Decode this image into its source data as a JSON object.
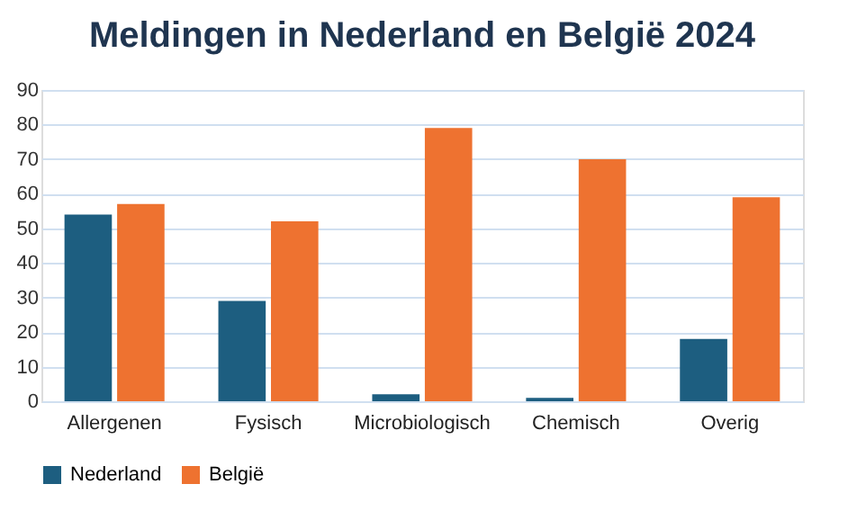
{
  "chart_data": {
    "type": "bar",
    "title": "Meldingen in Nederland en België 2024",
    "categories": [
      "Allergenen",
      "Fysisch",
      "Microbiologisch",
      "Chemisch",
      "Overig"
    ],
    "series": [
      {
        "name": "Nederland",
        "color": "#1d5e80",
        "values": [
          54,
          29,
          2,
          1,
          18
        ]
      },
      {
        "name": "België",
        "color": "#ee7230",
        "values": [
          57,
          52,
          79,
          70,
          59
        ]
      }
    ],
    "ylim": [
      0,
      90
    ],
    "yticks": [
      0,
      10,
      20,
      30,
      40,
      50,
      60,
      70,
      80,
      90
    ],
    "grid": "y",
    "legend": "bottom"
  }
}
